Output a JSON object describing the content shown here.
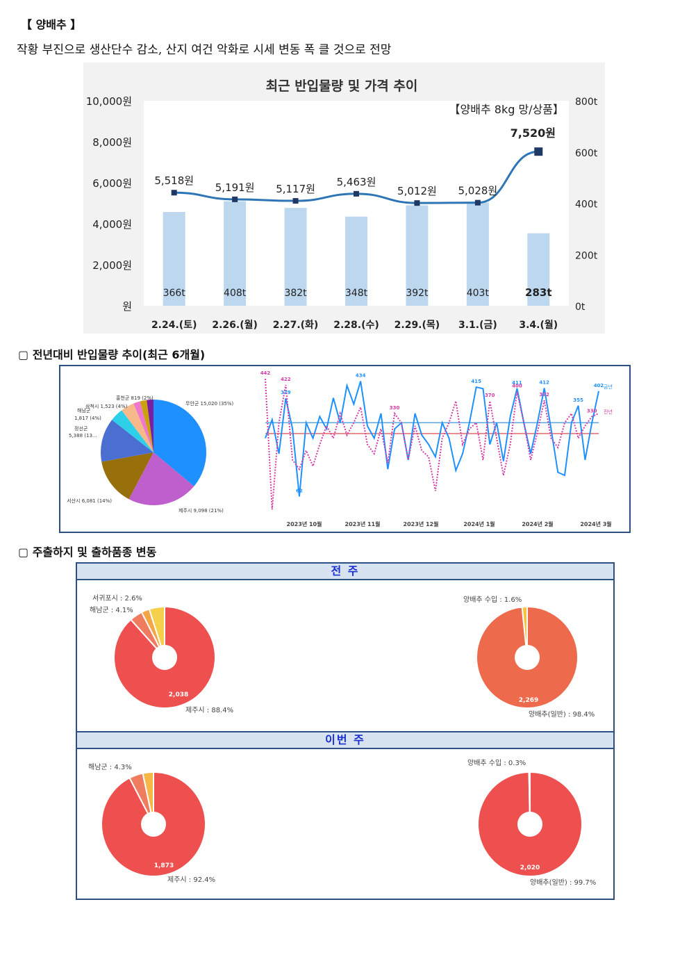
{
  "header": {
    "title": "【 양배추 】",
    "subtitle": "작황 부진으로 생산단수 감소, 산지 여건 악화로 시세 변동 폭 클 것으로 전망"
  },
  "main_chart": {
    "title": "최근 반입물량 및 가격 추이",
    "product_note": "【양배추 8kg 망/상품】",
    "left_ticks": [
      "10,000원",
      "8,000원",
      "6,000원",
      "4,000원",
      "2,000원",
      "원"
    ],
    "right_ticks": [
      "800t",
      "600t",
      "400t",
      "200t",
      "0t"
    ]
  },
  "chart_data": [
    {
      "type": "bar",
      "title": "최근 반입물량 및 가격 추이",
      "categories": [
        "2.24.(토)",
        "2.26.(월)",
        "2.27.(화)",
        "2.28.(수)",
        "2.29.(목)",
        "3.1.(금)",
        "3.4.(월)"
      ],
      "series": [
        {
          "axis": "right",
          "unit": "t",
          "values": [
            366,
            408,
            382,
            348,
            392,
            403,
            283
          ],
          "labels": [
            "366t",
            "408t",
            "382t",
            "348t",
            "392t",
            "403t",
            "283t"
          ]
        },
        {
          "axis": "left",
          "type": "line",
          "unit": "원",
          "values": [
            5518,
            5191,
            5117,
            5463,
            5012,
            5028,
            7520
          ],
          "labels": [
            "5,518원",
            "5,191원",
            "5,117원",
            "5,463원",
            "5,012원",
            "5,028원",
            "7,520원"
          ]
        }
      ],
      "ylim_left": [
        0,
        10000
      ],
      "ylim_right": [
        0,
        800
      ],
      "colors": {
        "bar": "#bdd7ee",
        "line": "#2e75b6",
        "marker": "#1f3864"
      }
    },
    {
      "type": "pie",
      "slices": [
        {
          "label": "무안군 15,020 (35%)",
          "value": 35,
          "color": "#1e90ff"
        },
        {
          "label": "제주시 9,098 (21%)",
          "value": 21,
          "color": "#bf5fce"
        },
        {
          "label": "서산시 6,081 (14%)",
          "value": 14,
          "color": "#98700b"
        },
        {
          "label": "정선군 5,388 (13...",
          "value": 13,
          "color": "#4a6fd0"
        },
        {
          "label": "해남군 1,817 (4%)",
          "value": 4,
          "color": "#2ecfe8"
        },
        {
          "label": "삼척시 1,523 (4%)",
          "value": 4,
          "color": "#f7b98a"
        },
        {
          "label": "홍천군 819 (2%)",
          "value": 2,
          "color": "#ee78cc"
        },
        {
          "label": "",
          "value": 2,
          "color": "#caa10f"
        },
        {
          "label": "",
          "value": 2,
          "color": "#7b1fa2"
        }
      ]
    },
    {
      "type": "line",
      "x_labels": [
        "2023년 10월",
        "2023년 11월",
        "2023년 12월",
        "2024년 1월",
        "2024년 2월",
        "2024년 3월"
      ],
      "series": [
        {
          "name": "금년",
          "color": "#1e90ff",
          "values": [
            250,
            310,
            200,
            379,
            280,
            62,
            300,
            250,
            320,
            280,
            380,
            300,
            420,
            360,
            434,
            290,
            250,
            330,
            150,
            280,
            300,
            180,
            330,
            260,
            230,
            190,
            300,
            250,
            146,
            200,
            300,
            415,
            410,
            230,
            300,
            176,
            320,
            411,
            300,
            200,
            300,
            412,
            280,
            140,
            130,
            300,
            355,
            180,
            300,
            402
          ]
        },
        {
          "name": "전년",
          "color": "#d63aa6",
          "values": [
            442,
            20,
            300,
            422,
            180,
            150,
            210,
            160,
            230,
            290,
            250,
            330,
            260,
            300,
            350,
            230,
            200,
            280,
            170,
            330,
            300,
            180,
            290,
            210,
            190,
            80,
            250,
            300,
            370,
            230,
            280,
            300,
            180,
            370,
            250,
            130,
            230,
            400,
            300,
            180,
            270,
            372,
            250,
            220,
            300,
            330,
            250,
            290,
            320,
            330
          ]
        }
      ],
      "point_labels": [
        "442",
        "422",
        "379",
        "62",
        "434",
        "330",
        "146",
        "415",
        "370",
        "411",
        "400",
        "412",
        "355",
        "372",
        "402",
        "330"
      ],
      "ref_lines": [
        {
          "color": "#5aa9e6"
        },
        {
          "color": "#e36a6a"
        }
      ]
    },
    {
      "type": "pie",
      "title": "전 주",
      "slices": [
        {
          "label": "제주시 : 88.4%",
          "value": 88.4
        },
        {
          "label": "해남군 : 4.1%",
          "value": 4.1
        },
        {
          "label": "서귀포시 : 2.6%",
          "value": 2.6
        },
        {
          "label": "",
          "value": 4.9
        }
      ],
      "center_value": "2,038"
    },
    {
      "type": "pie",
      "title": "전 주",
      "slices": [
        {
          "label": "양배추(일반) : 98.4%",
          "value": 98.4
        },
        {
          "label": "양배추 수입 : 1.6%",
          "value": 1.6
        }
      ],
      "center_value": "2,269"
    },
    {
      "type": "pie",
      "title": "이번 주",
      "slices": [
        {
          "label": "제주시 : 92.4%",
          "value": 92.4
        },
        {
          "label": "해남군 : 4.3%",
          "value": 4.3
        },
        {
          "label": "",
          "value": 3.3
        }
      ],
      "center_value": "1,873"
    },
    {
      "type": "pie",
      "title": "이번 주",
      "slices": [
        {
          "label": "양배추(일반) : 99.7%",
          "value": 99.7
        },
        {
          "label": "양배추 수입 : 0.3%",
          "value": 0.3
        }
      ],
      "center_value": "2,020"
    }
  ],
  "section2": {
    "title": "▢ 전년대비 반입물량 추이(최근 6개월)",
    "legend_this_year": "금년",
    "legend_last_year": "전년"
  },
  "section3": {
    "title": "▢ 주출하지 및 출하품종 변동",
    "band_prev": "전 주",
    "band_curr": "이번 주"
  }
}
